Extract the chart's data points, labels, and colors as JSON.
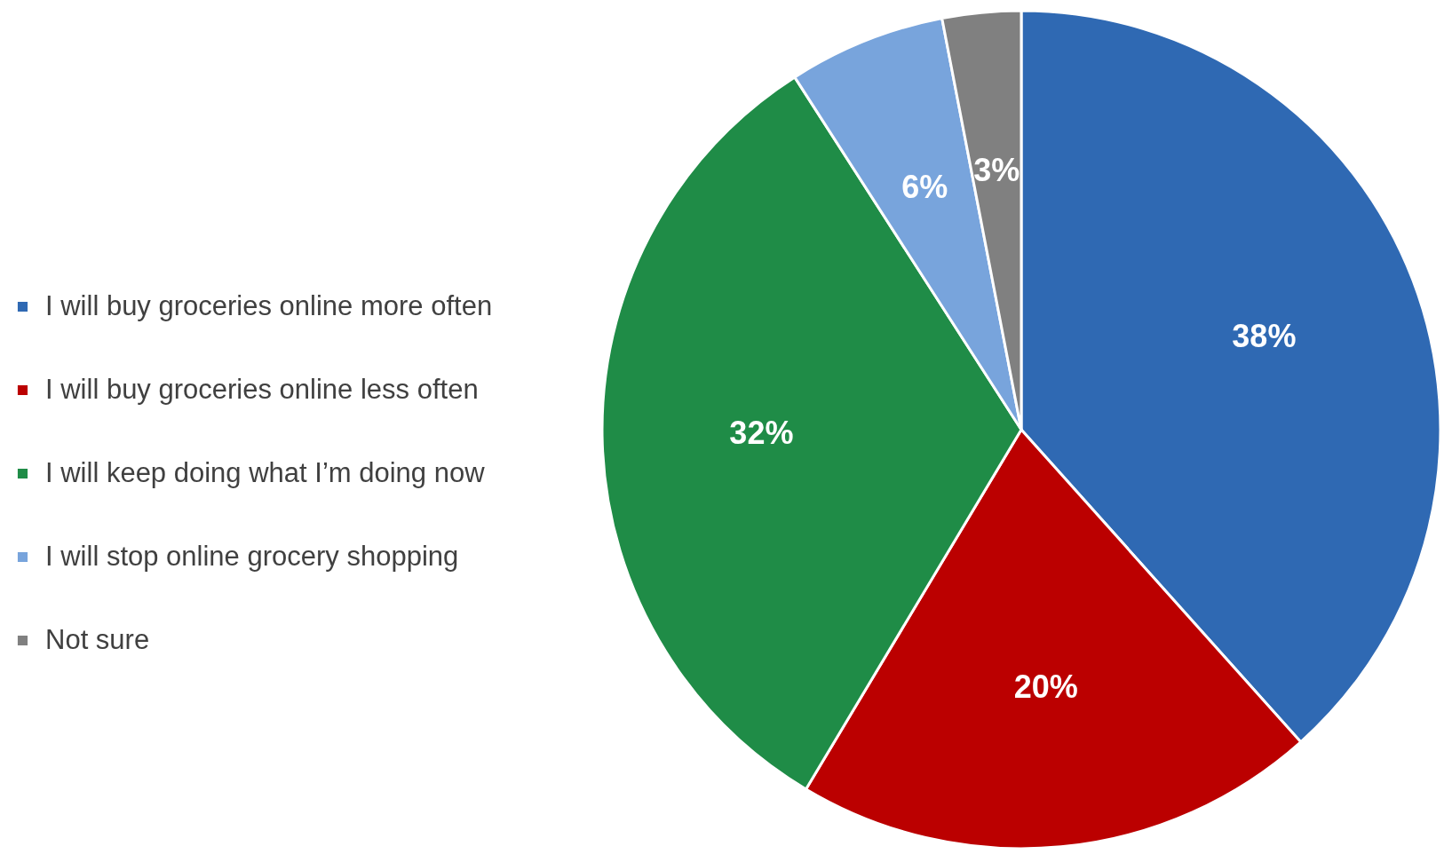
{
  "chart_data": {
    "type": "pie",
    "categories": [
      "I will buy groceries online more often",
      "I will buy groceries online less often",
      "I will keep doing what I’m doing now",
      "I will stop online grocery shopping",
      "Not sure"
    ],
    "values": [
      38,
      20,
      32,
      6,
      3
    ],
    "colors": [
      "#2f69b3",
      "#bb0000",
      "#1f8c47",
      "#78a4dc",
      "#808080"
    ],
    "value_labels": [
      "38%",
      "20%",
      "32%",
      "6%",
      "3%"
    ],
    "legend": "left"
  }
}
